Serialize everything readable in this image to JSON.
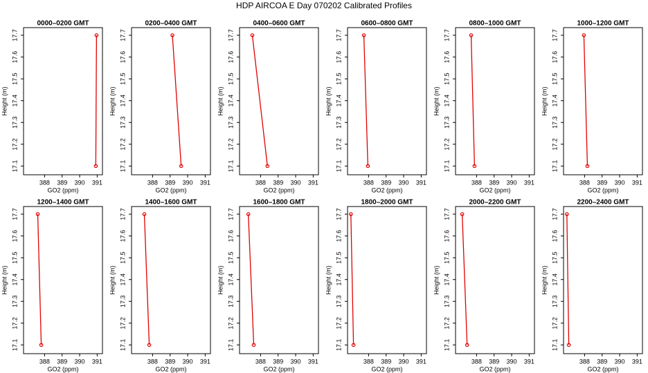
{
  "title": "HDP AIRCOA E  Day 070202  Calibrated Profiles",
  "chart_data": [
    {
      "type": "line",
      "title": "0000–0200 GMT",
      "xlabel": "GO2 (ppm)",
      "ylabel": "Height (m)",
      "x": [
        390.92,
        390.96
      ],
      "values": [
        17.1,
        17.7
      ],
      "color": "#e00000",
      "xlim": [
        386.8,
        391.3
      ],
      "ylim": [
        17.06,
        17.735
      ],
      "xticks": [
        388,
        389,
        390,
        391
      ],
      "yticks": [
        17.1,
        17.2,
        17.3,
        17.4,
        17.5,
        17.6,
        17.7
      ]
    },
    {
      "type": "line",
      "title": "0200–0400 GMT",
      "xlabel": "GO2 (ppm)",
      "ylabel": "Height (m)",
      "x": [
        389.63,
        389.13
      ],
      "values": [
        17.1,
        17.7
      ],
      "color": "#e00000",
      "xlim": [
        386.8,
        391.3
      ],
      "ylim": [
        17.06,
        17.735
      ],
      "xticks": [
        388,
        389,
        390,
        391
      ],
      "yticks": [
        17.1,
        17.2,
        17.3,
        17.4,
        17.5,
        17.6,
        17.7
      ]
    },
    {
      "type": "line",
      "title": "0400–0600 GMT",
      "xlabel": "GO2 (ppm)",
      "ylabel": "Height (m)",
      "x": [
        388.39,
        387.53
      ],
      "values": [
        17.1,
        17.7
      ],
      "color": "#e00000",
      "xlim": [
        386.8,
        391.3
      ],
      "ylim": [
        17.06,
        17.735
      ],
      "xticks": [
        388,
        389,
        390,
        391
      ],
      "yticks": [
        17.1,
        17.2,
        17.3,
        17.4,
        17.5,
        17.6,
        17.7
      ]
    },
    {
      "type": "line",
      "title": "0600–0800 GMT",
      "xlabel": "GO2 (ppm)",
      "ylabel": "Height (m)",
      "x": [
        387.96,
        387.73
      ],
      "values": [
        17.1,
        17.7
      ],
      "color": "#e00000",
      "xlim": [
        386.8,
        391.3
      ],
      "ylim": [
        17.06,
        17.735
      ],
      "xticks": [
        388,
        389,
        390,
        391
      ],
      "yticks": [
        17.1,
        17.2,
        17.3,
        17.4,
        17.5,
        17.6,
        17.7
      ]
    },
    {
      "type": "line",
      "title": "0800–1000 GMT",
      "xlabel": "GO2 (ppm)",
      "ylabel": "Height (m)",
      "x": [
        387.88,
        387.69
      ],
      "values": [
        17.1,
        17.7
      ],
      "color": "#e00000",
      "xlim": [
        386.8,
        391.3
      ],
      "ylim": [
        17.06,
        17.735
      ],
      "xticks": [
        388,
        389,
        390,
        391
      ],
      "yticks": [
        17.1,
        17.2,
        17.3,
        17.4,
        17.5,
        17.6,
        17.7
      ]
    },
    {
      "type": "line",
      "title": "1000–1200 GMT",
      "xlabel": "GO2 (ppm)",
      "ylabel": "Height (m)",
      "x": [
        388.16,
        387.96
      ],
      "values": [
        17.1,
        17.7
      ],
      "color": "#e00000",
      "xlim": [
        386.8,
        391.3
      ],
      "ylim": [
        17.06,
        17.735
      ],
      "xticks": [
        388,
        389,
        390,
        391
      ],
      "yticks": [
        17.1,
        17.2,
        17.3,
        17.4,
        17.5,
        17.6,
        17.7
      ]
    },
    {
      "type": "line",
      "title": "1200–1400 GMT",
      "xlabel": "GO2 (ppm)",
      "ylabel": "Height (m)",
      "x": [
        387.81,
        387.61
      ],
      "values": [
        17.1,
        17.7
      ],
      "color": "#e00000",
      "xlim": [
        386.8,
        391.3
      ],
      "ylim": [
        17.06,
        17.735
      ],
      "xticks": [
        388,
        389,
        390,
        391
      ],
      "yticks": [
        17.1,
        17.2,
        17.3,
        17.4,
        17.5,
        17.6,
        17.7
      ]
    },
    {
      "type": "line",
      "title": "1400–1600 GMT",
      "xlabel": "GO2 (ppm)",
      "ylabel": "Height (m)",
      "x": [
        387.81,
        387.53
      ],
      "values": [
        17.1,
        17.7
      ],
      "color": "#e00000",
      "xlim": [
        386.8,
        391.3
      ],
      "ylim": [
        17.06,
        17.735
      ],
      "xticks": [
        388,
        389,
        390,
        391
      ],
      "yticks": [
        17.1,
        17.2,
        17.3,
        17.4,
        17.5,
        17.6,
        17.7
      ]
    },
    {
      "type": "line",
      "title": "1600–1800 GMT",
      "xlabel": "GO2 (ppm)",
      "ylabel": "Height (m)",
      "x": [
        387.61,
        387.3
      ],
      "values": [
        17.1,
        17.7
      ],
      "color": "#e00000",
      "xlim": [
        386.8,
        391.3
      ],
      "ylim": [
        17.06,
        17.735
      ],
      "xticks": [
        388,
        389,
        390,
        391
      ],
      "yticks": [
        17.1,
        17.2,
        17.3,
        17.4,
        17.5,
        17.6,
        17.7
      ]
    },
    {
      "type": "line",
      "title": "1800–2000 GMT",
      "xlabel": "GO2 (ppm)",
      "ylabel": "Height (m)",
      "x": [
        387.14,
        386.99
      ],
      "values": [
        17.1,
        17.7
      ],
      "color": "#e00000",
      "xlim": [
        386.8,
        391.3
      ],
      "ylim": [
        17.06,
        17.735
      ],
      "xticks": [
        388,
        389,
        390,
        391
      ],
      "yticks": [
        17.1,
        17.2,
        17.3,
        17.4,
        17.5,
        17.6,
        17.7
      ]
    },
    {
      "type": "line",
      "title": "2000–2200 GMT",
      "xlabel": "GO2 (ppm)",
      "ylabel": "Height (m)",
      "x": [
        387.46,
        387.18
      ],
      "values": [
        17.1,
        17.7
      ],
      "color": "#e00000",
      "xlim": [
        386.8,
        391.3
      ],
      "ylim": [
        17.06,
        17.735
      ],
      "xticks": [
        388,
        389,
        390,
        391
      ],
      "yticks": [
        17.1,
        17.2,
        17.3,
        17.4,
        17.5,
        17.6,
        17.7
      ]
    },
    {
      "type": "line",
      "title": "2200–2400 GMT",
      "xlabel": "GO2 (ppm)",
      "ylabel": "Height (m)",
      "x": [
        387.1,
        386.99
      ],
      "values": [
        17.1,
        17.7
      ],
      "color": "#e00000",
      "xlim": [
        386.8,
        391.3
      ],
      "ylim": [
        17.06,
        17.735
      ],
      "xticks": [
        388,
        389,
        390,
        391
      ],
      "yticks": [
        17.1,
        17.2,
        17.3,
        17.4,
        17.5,
        17.6,
        17.7
      ]
    }
  ]
}
